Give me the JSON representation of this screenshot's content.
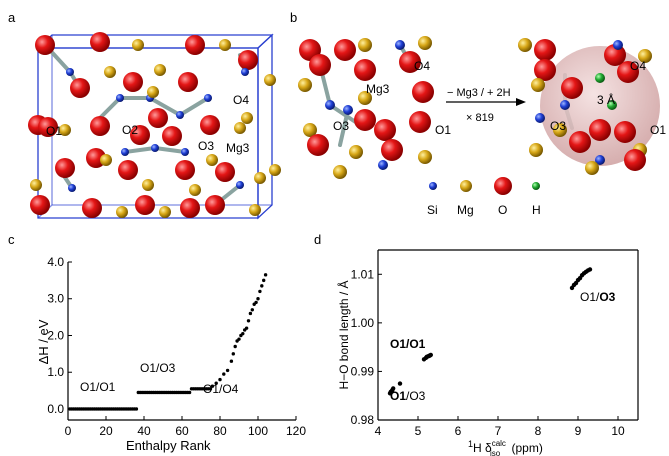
{
  "panels": {
    "a": {
      "label": "a",
      "atom_labels": [
        "O1",
        "O2",
        "O3",
        "Mg3",
        "O4"
      ]
    },
    "b": {
      "label": "b",
      "left_labels": [
        "O4",
        "Mg3",
        "O3",
        "O1"
      ],
      "arrow_top": "− Mg3 / + 2H",
      "arrow_bottom": "× 819",
      "right_labels": [
        "O4",
        "3 Å",
        "O3",
        "O1"
      ],
      "legend": [
        "Si",
        "Mg",
        "O",
        "H"
      ],
      "colors": {
        "Si": "#1f3fd6",
        "Mg": "#d8a818",
        "O": "#e01010",
        "H": "#22aa33",
        "sphere": "#d8aaaa"
      }
    },
    "c": {
      "label": "c",
      "annotations": [
        "O1/O1",
        "O1/O3",
        "O1/O4"
      ]
    },
    "d": {
      "label": "d",
      "annotations": {
        "o1o1_bold": "O1/O1",
        "o1o3_a": "O1/",
        "o1o3_b": "O3",
        "o1_first": "O1",
        "o1o3_c_rest": "/O3",
        "o1o3_top_prefix": "O1/",
        "o1o3_top_bold": "O3"
      }
    }
  },
  "chart_data": [
    {
      "type": "scatter",
      "panel": "c",
      "xlabel": "Enthalpy Rank",
      "ylabel": "ΔH / eV",
      "xlim": [
        0,
        120
      ],
      "ylim": [
        -0.3,
        4.0
      ],
      "xticks": [
        "0",
        "20",
        "40",
        "60",
        "80",
        "100",
        "120"
      ],
      "yticks": [
        "0.0",
        "1.0",
        "2.0",
        "3.0",
        "4.0"
      ],
      "segments": [
        {
          "from_rank": 1,
          "to_rank": 36,
          "value": 0.0
        },
        {
          "from_rank": 37,
          "to_rank": 64,
          "value": 0.45
        },
        {
          "from_rank": 65,
          "to_rank": 75,
          "value": 0.55
        }
      ],
      "tail": [
        [
          76,
          0.62
        ],
        [
          78,
          0.7
        ],
        [
          80,
          0.8
        ],
        [
          82,
          0.95
        ],
        [
          84,
          1.05
        ],
        [
          86,
          1.3
        ],
        [
          87,
          1.5
        ],
        [
          88,
          1.7
        ],
        [
          89,
          1.85
        ],
        [
          90,
          1.9
        ],
        [
          91,
          2.0
        ],
        [
          92,
          2.05
        ],
        [
          93,
          2.15
        ],
        [
          94,
          2.2
        ],
        [
          95,
          2.4
        ],
        [
          96,
          2.6
        ],
        [
          97,
          2.7
        ],
        [
          98,
          2.85
        ],
        [
          99,
          2.9
        ],
        [
          100,
          3.0
        ],
        [
          101,
          3.2
        ],
        [
          102,
          3.35
        ],
        [
          103,
          3.5
        ],
        [
          104,
          3.65
        ]
      ]
    },
    {
      "type": "scatter",
      "panel": "d",
      "xlabel": "¹H δ_iso^calc (ppm)",
      "ylabel": "H−O bond length / Å",
      "xlim": [
        4,
        10.5
      ],
      "ylim": [
        0.98,
        1.015
      ],
      "xticks": [
        "4",
        "5",
        "6",
        "7",
        "8",
        "9",
        "10"
      ],
      "yticks": [
        "0.98",
        "0.99",
        "1.00",
        "1.01"
      ],
      "series": [
        {
          "points": [
            [
              4.3,
              0.9855
            ],
            [
              4.32,
              0.9858
            ],
            [
              4.35,
              0.986
            ],
            [
              4.36,
              0.9862
            ],
            [
              4.38,
              0.9865
            ],
            [
              4.55,
              0.9875
            ]
          ]
        },
        {
          "points": [
            [
              5.15,
              0.9925
            ],
            [
              5.2,
              0.9928
            ],
            [
              5.22,
              0.993
            ],
            [
              5.25,
              0.9931
            ],
            [
              5.28,
              0.9932
            ],
            [
              5.3,
              0.9933
            ],
            [
              5.32,
              0.9934
            ]
          ]
        },
        {
          "points": [
            [
              8.85,
              1.0072
            ],
            [
              8.9,
              1.0078
            ],
            [
              8.95,
              1.0082
            ],
            [
              9.0,
              1.0088
            ],
            [
              9.05,
              1.0092
            ],
            [
              9.1,
              1.0098
            ],
            [
              9.15,
              1.0102
            ],
            [
              9.2,
              1.0105
            ],
            [
              9.25,
              1.0108
            ],
            [
              9.3,
              1.011
            ]
          ]
        }
      ]
    }
  ]
}
